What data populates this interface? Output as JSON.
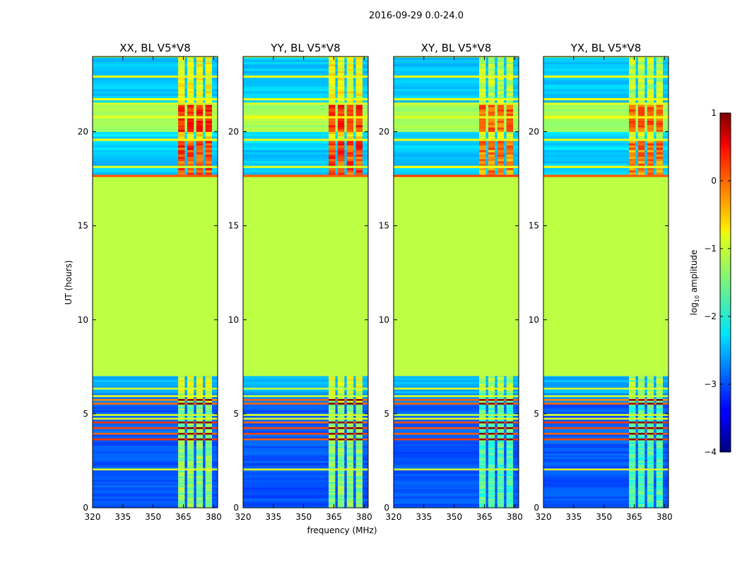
{
  "chart_data": {
    "type": "heatmap",
    "title": "2016-09-29 0.0-24.0",
    "xlabel": "frequency (MHz)",
    "ylabel": "UT (hours)",
    "colorbar_label": "log10 amplitude",
    "colorbar_label_base": "log",
    "colorbar_label_sub": "10",
    "colorbar_label_rest": " amplitude",
    "colormap": "jet",
    "clim": [
      -4,
      1
    ],
    "colorbar_ticks": [
      {
        "value": 1,
        "label": "1"
      },
      {
        "value": 0,
        "label": "0"
      },
      {
        "value": -1,
        "label": "−1"
      },
      {
        "value": -2,
        "label": "−2"
      },
      {
        "value": -3,
        "label": "−3"
      },
      {
        "value": -4,
        "label": "−4"
      }
    ],
    "xlim": [
      320,
      382
    ],
    "ylim": [
      0,
      24
    ],
    "x_ticks": [
      320,
      335,
      350,
      365,
      380
    ],
    "y_ticks": [
      0,
      5,
      10,
      15,
      20
    ],
    "panels": [
      {
        "title": "XX, BL V5*V8",
        "id": "xx"
      },
      {
        "title": "YY, BL V5*V8",
        "id": "yy"
      },
      {
        "title": "XY, BL V5*V8",
        "id": "xy"
      },
      {
        "title": "YX, BL V5*V8",
        "id": "yx"
      }
    ],
    "flagged_interval_hours": [
      7.0,
      17.6
    ],
    "flagged_value": -1.2,
    "active_channel_range_mhz": [
      362,
      380
    ]
  }
}
